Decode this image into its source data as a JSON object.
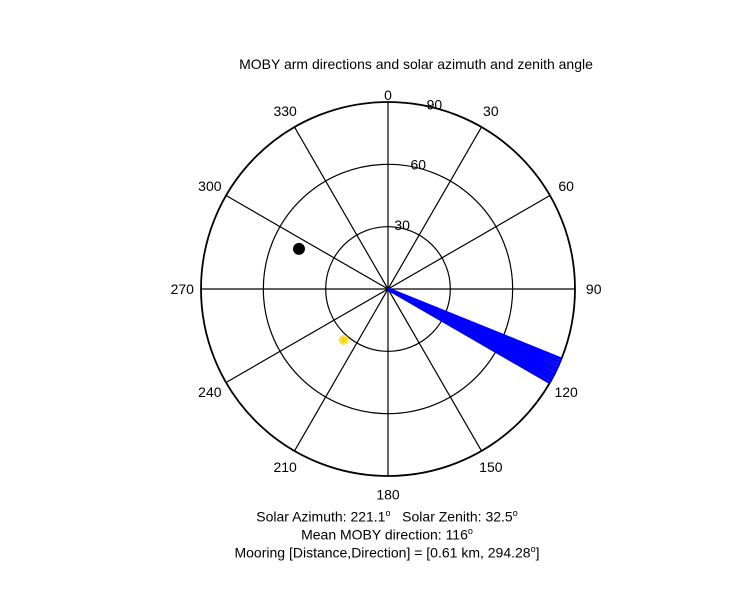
{
  "chart_data": {
    "type": "scatter",
    "projection": "polar",
    "title": "MOBY arm directions and solar azimuth and zenith angle",
    "angular_axis": {
      "zero_at": "top",
      "direction": "clockwise",
      "tick_labels": [
        "0",
        "30",
        "60",
        "90",
        "120",
        "150",
        "180",
        "210",
        "240",
        "270",
        "300",
        "330"
      ]
    },
    "radial_axis": {
      "range": [
        0,
        90
      ],
      "tick_labels": [
        "30",
        "60",
        "90"
      ]
    },
    "grid": true,
    "series": [
      {
        "kind": "wedge",
        "color": "#0000ff",
        "points": [
          {
            "theta": 112,
            "r": 90
          },
          {
            "theta": 113,
            "r": 90
          },
          {
            "theta": 114,
            "r": 90
          },
          {
            "theta": 115,
            "r": 90
          },
          {
            "theta": 116,
            "r": 90
          },
          {
            "theta": 117,
            "r": 90
          },
          {
            "theta": 118,
            "r": 90
          },
          {
            "theta": 119,
            "r": 90
          },
          {
            "theta": 120,
            "r": 90
          }
        ]
      },
      {
        "kind": "marker",
        "marker": "asterisk",
        "color": "#ffd700",
        "points": [
          {
            "theta": 221.1,
            "r": 32.5
          }
        ]
      },
      {
        "kind": "marker",
        "marker": "dot",
        "color": "#000000",
        "points": [
          {
            "theta": 294.28,
            "r": 47
          }
        ]
      }
    ]
  },
  "captions": {
    "solar_az_label": "Solar Azimuth:",
    "solar_az_value": "221.1",
    "solar_zen_label": "Solar Zenith:",
    "solar_zen_value": "32.5",
    "mean_label": "Mean MOBY direction:",
    "mean_value": "116",
    "mooring_label": "Mooring [Distance,Direction] =",
    "mooring_value": "[0.61 km, 294.28",
    "mooring_close": "]",
    "degree": "o"
  }
}
